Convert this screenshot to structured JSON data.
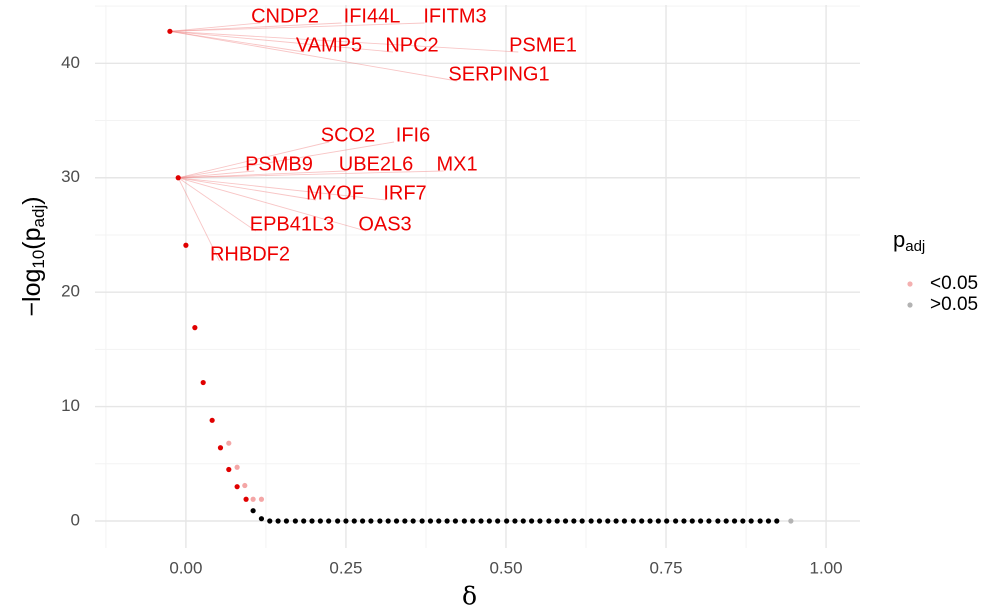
{
  "chart_data": {
    "type": "scatter",
    "xlabel": "δ",
    "ylabel": [
      "−log",
      "10",
      "(p",
      "adj",
      ")"
    ],
    "legend_title": [
      "p",
      "adj"
    ],
    "xlim": [
      -0.142,
      1.053
    ],
    "ylim": [
      -2.36,
      45.1
    ],
    "xticks": [
      {
        "value": 0,
        "label": "0.00"
      },
      {
        "value": 0.25,
        "label": "0.25"
      },
      {
        "value": 0.5,
        "label": "0.50"
      },
      {
        "value": 0.75,
        "label": "0.75"
      },
      {
        "value": 1,
        "label": "1.00"
      }
    ],
    "yticks": [
      0,
      10,
      20,
      30,
      40
    ],
    "grid": true,
    "legend": "right",
    "series": [
      {
        "name": "<0.05",
        "color": "#f4b0b0",
        "x": [
          -0.025,
          -0.012,
          0.0,
          0.014,
          0.027,
          0.041,
          0.054,
          0.067,
          0.08,
          0.094,
          0.067,
          0.08,
          0.092,
          0.105,
          0.118
        ],
        "values": [
          42.8,
          30.0,
          24.1,
          16.9,
          12.1,
          8.8,
          6.4,
          4.5,
          3.0,
          1.9,
          6.8,
          4.7,
          3.1,
          1.9,
          1.9
        ],
        "colors": [
          "#e00000",
          "#e00000",
          "#e00000",
          "#e00000",
          "#e00000",
          "#e00000",
          "#e00000",
          "#e00000",
          "#e00000",
          "#e00000",
          "#f4a6a6",
          "#f4a6a6",
          "#f4a6a6",
          "#f4a6a6",
          "#f4a6a6"
        ]
      },
      {
        "name": ">0.05",
        "color": "#b3b3b3",
        "x": [
          0.105,
          0.118,
          0.131,
          0.144,
          0.157,
          0.171,
          0.184,
          0.197,
          0.21,
          0.223,
          0.237,
          0.25,
          0.263,
          0.276,
          0.289,
          0.303,
          0.316,
          0.329,
          0.342,
          0.355,
          0.369,
          0.382,
          0.395,
          0.408,
          0.421,
          0.435,
          0.448,
          0.461,
          0.474,
          0.487,
          0.501,
          0.514,
          0.527,
          0.54,
          0.553,
          0.567,
          0.58,
          0.593,
          0.606,
          0.619,
          0.633,
          0.646,
          0.659,
          0.672,
          0.685,
          0.699,
          0.712,
          0.725,
          0.738,
          0.751,
          0.765,
          0.778,
          0.791,
          0.804,
          0.817,
          0.831,
          0.844,
          0.857,
          0.87,
          0.883,
          0.897,
          0.91,
          0.923,
          0.945
        ],
        "values": [
          0.9,
          0.2,
          0,
          0,
          0,
          0,
          0,
          0,
          0,
          0,
          0,
          0,
          0,
          0,
          0,
          0,
          0,
          0,
          0,
          0,
          0,
          0,
          0,
          0,
          0,
          0,
          0,
          0,
          0,
          0,
          0,
          0,
          0,
          0,
          0,
          0,
          0,
          0,
          0,
          0,
          0,
          0,
          0,
          0,
          0,
          0,
          0,
          0,
          0,
          0,
          0,
          0,
          0,
          0,
          0,
          0,
          0,
          0,
          0,
          0,
          0,
          0,
          0,
          0
        ],
        "colors": [
          "#000000",
          "#000000",
          "#000000",
          "#000000",
          "#000000",
          "#000000",
          "#000000",
          "#000000",
          "#000000",
          "#000000",
          "#000000",
          "#000000",
          "#000000",
          "#000000",
          "#000000",
          "#000000",
          "#000000",
          "#000000",
          "#000000",
          "#000000",
          "#000000",
          "#000000",
          "#000000",
          "#000000",
          "#000000",
          "#000000",
          "#000000",
          "#000000",
          "#000000",
          "#000000",
          "#000000",
          "#000000",
          "#000000",
          "#000000",
          "#000000",
          "#000000",
          "#000000",
          "#000000",
          "#000000",
          "#000000",
          "#000000",
          "#000000",
          "#000000",
          "#000000",
          "#000000",
          "#000000",
          "#000000",
          "#000000",
          "#000000",
          "#000000",
          "#000000",
          "#000000",
          "#000000",
          "#000000",
          "#000000",
          "#000000",
          "#000000",
          "#000000",
          "#000000",
          "#000000",
          "#000000",
          "#000000",
          "#000000",
          "#b3b3b3"
        ]
      }
    ],
    "annotations": [
      "CNDP2",
      "IFI44L",
      "IFITM3",
      "VAMP5",
      "NPC2",
      "PSME1",
      "SERPING1",
      "SCO2",
      "IFI6",
      "PSMB9",
      "UBE2L6",
      "MX1",
      "MYOF",
      "IRF7",
      "EPB41L3",
      "OAS3",
      "RHBDF2"
    ]
  }
}
